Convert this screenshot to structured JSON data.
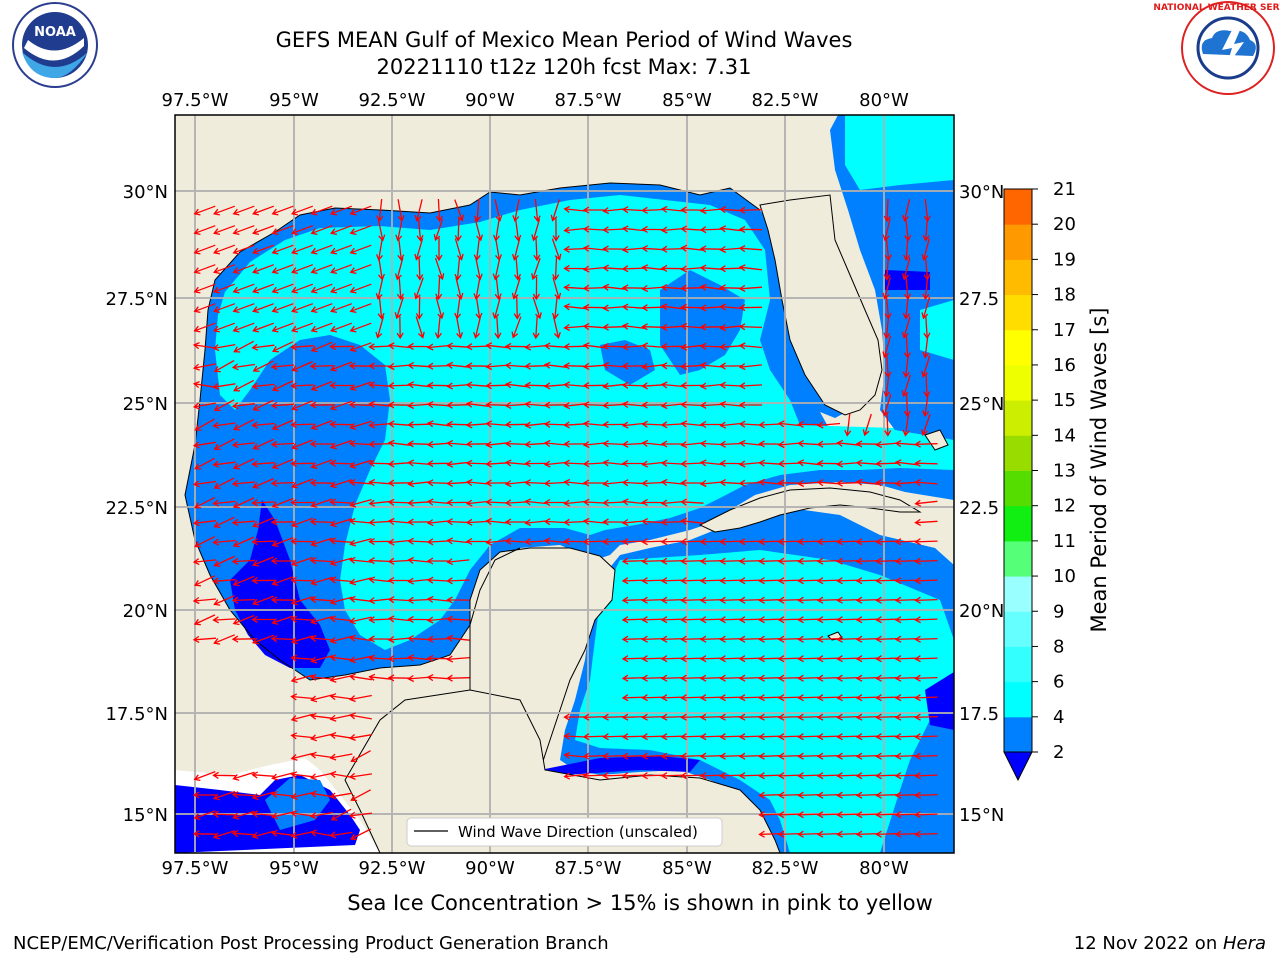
{
  "header": {
    "title_line1": "GEFS MEAN Gulf of Mexico Mean Period of Wind Waves",
    "title_line2": "20221110 t12z 120h fcst   Max: 7.31"
  },
  "logos": {
    "left": {
      "name": "NOAA",
      "text": "NOAA",
      "ring_text": "NATIONAL OCEANIC AND ATMOSPHERIC ADMINISTRATION · U.S. DEPARTMENT OF COMMERCE"
    },
    "right": {
      "name": "National Weather Service",
      "ring_text": "NATIONAL WEATHER SERVICE"
    }
  },
  "map": {
    "lon_labels": [
      "97.5°W",
      "95°W",
      "92.5°W",
      "90°W",
      "87.5°W",
      "85°W",
      "82.5°W",
      "80°W"
    ],
    "lat_labels_left": [
      "30°N",
      "27.5°N",
      "25°N",
      "22.5°N",
      "20°N",
      "17.5°N",
      "15°N"
    ],
    "lat_labels_right": [
      "30°N",
      "27.5",
      "25°N",
      "22.5",
      "20°N",
      "17.5",
      "15°N"
    ],
    "extent": {
      "lon_min": -98,
      "lon_max": -78.5,
      "lat_min": 14,
      "lat_max": 31.7
    },
    "legend_label": "Wind Wave Direction (unscaled)",
    "colors": {
      "land": "#efecdc",
      "ocean_2_4": "#0080ff",
      "ocean_4_6": "#00ffff",
      "ocean_0_2": "#0000ff",
      "arrow": "#ff0000",
      "grid": "#b0b0b0"
    }
  },
  "colorbar": {
    "label": "Mean Period of Wind Waves [s]",
    "ticks": [
      "2",
      "4",
      "6",
      "8",
      "9",
      "10",
      "11",
      "12",
      "13",
      "14",
      "15",
      "16",
      "17",
      "18",
      "19",
      "20",
      "21"
    ],
    "colors": [
      "#0080ff",
      "#00ffff",
      "#33ffff",
      "#66ffff",
      "#99ffff",
      "#55ff77",
      "#11ee11",
      "#55dd00",
      "#99dd00",
      "#ccee00",
      "#eeff00",
      "#ffff00",
      "#ffdd00",
      "#ffbb00",
      "#ff9900",
      "#ff6600",
      "#ff3300",
      "#ff0000"
    ],
    "under_color": "#0000ff"
  },
  "footer": {
    "ice_note": "Sea Ice Concentration > 15% is shown in pink to yellow",
    "credit": "NCEP/EMC/Verification Post Processing Product Generation Branch",
    "date": "12 Nov 2022 on ",
    "host": "Hera"
  }
}
